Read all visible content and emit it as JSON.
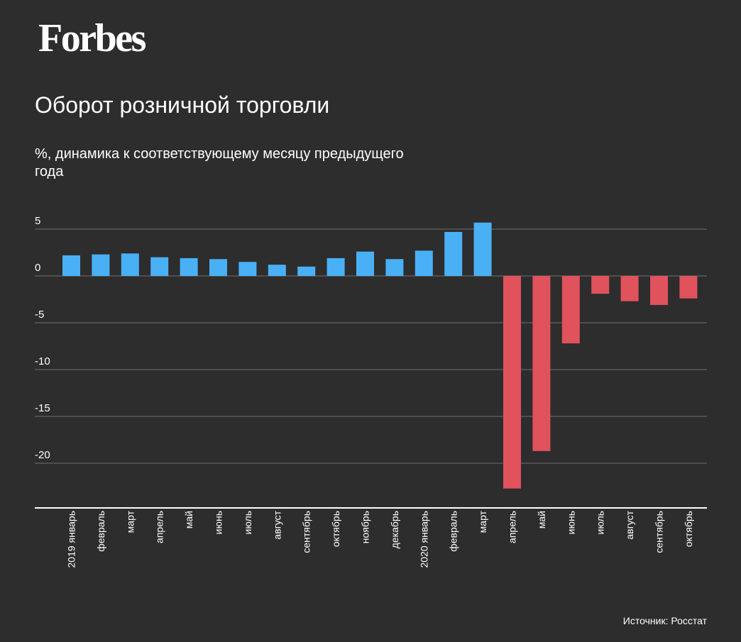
{
  "logo": {
    "text": "Forbes"
  },
  "footer": {
    "source": "Источник: Росстат"
  },
  "colors": {
    "background": "#2d2d2d",
    "positive": "#4ab0f5",
    "negative": "#e0525c",
    "grid": "#5a5a5a",
    "axis": "#ffffff"
  },
  "chart_data": {
    "type": "bar",
    "title": "Оборот розничной торговли",
    "subtitle": "%, динамика к соответствующему месяцу предыдущего года",
    "xlabel": "",
    "ylabel": "",
    "ylim": [
      -25,
      7
    ],
    "yticks": [
      5,
      0,
      -5,
      -10,
      -15,
      -20
    ],
    "grid": true,
    "legend": "none",
    "categories": [
      "2019 январь",
      "февраль",
      "март",
      "апрель",
      "май",
      "июнь",
      "июль",
      "август",
      "сентябрь",
      "октябрь",
      "ноябрь",
      "декабрь",
      "2020 январь",
      "февраль",
      "март",
      "апрель",
      "май",
      "июнь",
      "июль",
      "август",
      "сентябрь",
      "октябрь"
    ],
    "values": [
      2.2,
      2.3,
      2.4,
      2.0,
      1.9,
      1.8,
      1.5,
      1.2,
      1.0,
      1.9,
      2.6,
      1.8,
      2.7,
      4.7,
      5.7,
      -22.7,
      -18.7,
      -7.2,
      -1.9,
      -2.7,
      -3.1,
      -2.4
    ]
  }
}
